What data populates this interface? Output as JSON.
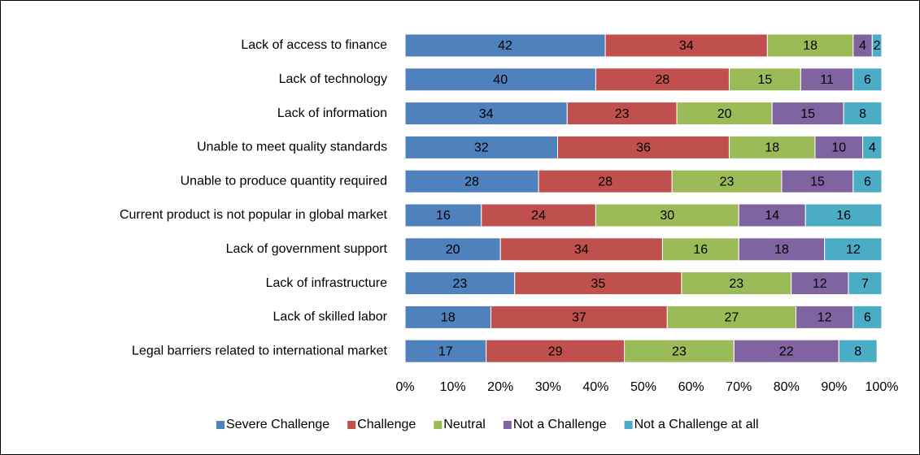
{
  "chart_data": {
    "type": "bar",
    "orientation": "horizontal",
    "stacked": true,
    "categories": [
      "Lack of access to finance",
      "Lack of technology",
      "Lack of information",
      "Unable to meet quality standards",
      "Unable to produce quantity required",
      "Current product is not popular in global market",
      "Lack of government support",
      "Lack of infrastructure",
      "Lack of skilled labor",
      "Legal barriers related to international market"
    ],
    "series": [
      {
        "name": "Severe Challenge",
        "color": "#4f81bd",
        "values": [
          42,
          40,
          34,
          32,
          28,
          16,
          20,
          23,
          18,
          17
        ]
      },
      {
        "name": "Challenge",
        "color": "#c0504d",
        "values": [
          34,
          28,
          23,
          36,
          28,
          24,
          34,
          35,
          37,
          29
        ]
      },
      {
        "name": "Neutral",
        "color": "#9bbb59",
        "values": [
          18,
          15,
          20,
          18,
          23,
          30,
          16,
          23,
          27,
          23
        ]
      },
      {
        "name": "Not a Challenge",
        "color": "#8064a2",
        "values": [
          4,
          11,
          15,
          10,
          15,
          14,
          18,
          12,
          12,
          22
        ]
      },
      {
        "name": "Not a Challenge at all",
        "color": "#4bacc6",
        "values": [
          2,
          6,
          8,
          4,
          6,
          16,
          12,
          7,
          6,
          8
        ]
      }
    ],
    "xlim": [
      0,
      100
    ],
    "xticks": [
      {
        "value": 0,
        "label": "0%"
      },
      {
        "value": 10,
        "label": "10%"
      },
      {
        "value": 20,
        "label": "20%"
      },
      {
        "value": 30,
        "label": "30%"
      },
      {
        "value": 40,
        "label": "40%"
      },
      {
        "value": 50,
        "label": "50%"
      },
      {
        "value": 60,
        "label": "60%"
      },
      {
        "value": 70,
        "label": "70%"
      },
      {
        "value": 80,
        "label": "80%"
      },
      {
        "value": 90,
        "label": "90%"
      },
      {
        "value": 100,
        "label": "100%"
      }
    ],
    "grid": false,
    "legend": "bottom"
  }
}
